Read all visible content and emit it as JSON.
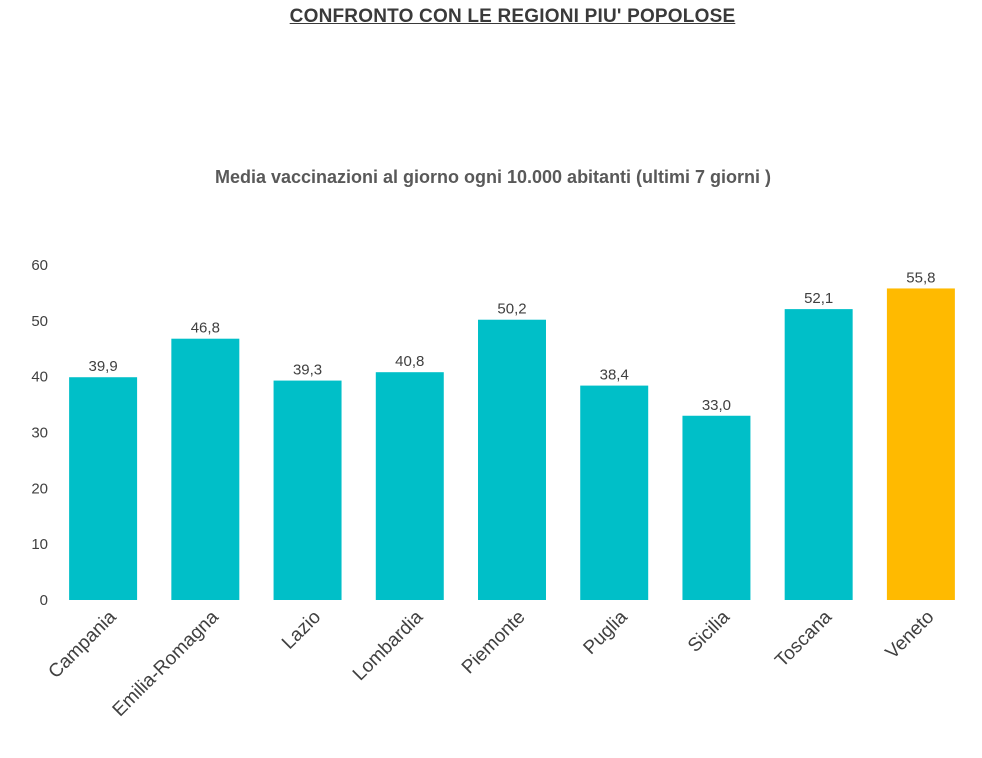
{
  "page": {
    "title": "CONFRONTO CON LE REGIONI PIU' POPOLOSE"
  },
  "chart_data": {
    "type": "bar",
    "title": "Media vaccinazioni al giorno ogni 10.000 abitanti (ultimi 7 giorni )",
    "xlabel": "",
    "ylabel": "",
    "ylim": [
      0,
      60
    ],
    "yticks": [
      0,
      10,
      20,
      30,
      40,
      50,
      60
    ],
    "grid": false,
    "categories": [
      "Campania",
      "Emilia-Romagna",
      "Lazio",
      "Lombardia",
      "Piemonte",
      "Puglia",
      "Sicilia",
      "Toscana",
      "Veneto"
    ],
    "values": [
      39.9,
      46.8,
      39.3,
      40.8,
      50.2,
      38.4,
      33.0,
      52.1,
      55.8
    ],
    "value_labels": [
      "39,9",
      "46,8",
      "39,3",
      "40,8",
      "50,2",
      "38,4",
      "33,0",
      "52,1",
      "55,8"
    ],
    "colors": {
      "default": "#00BFC8",
      "highlight": "#FFBA00"
    },
    "highlight_category": "Veneto"
  }
}
